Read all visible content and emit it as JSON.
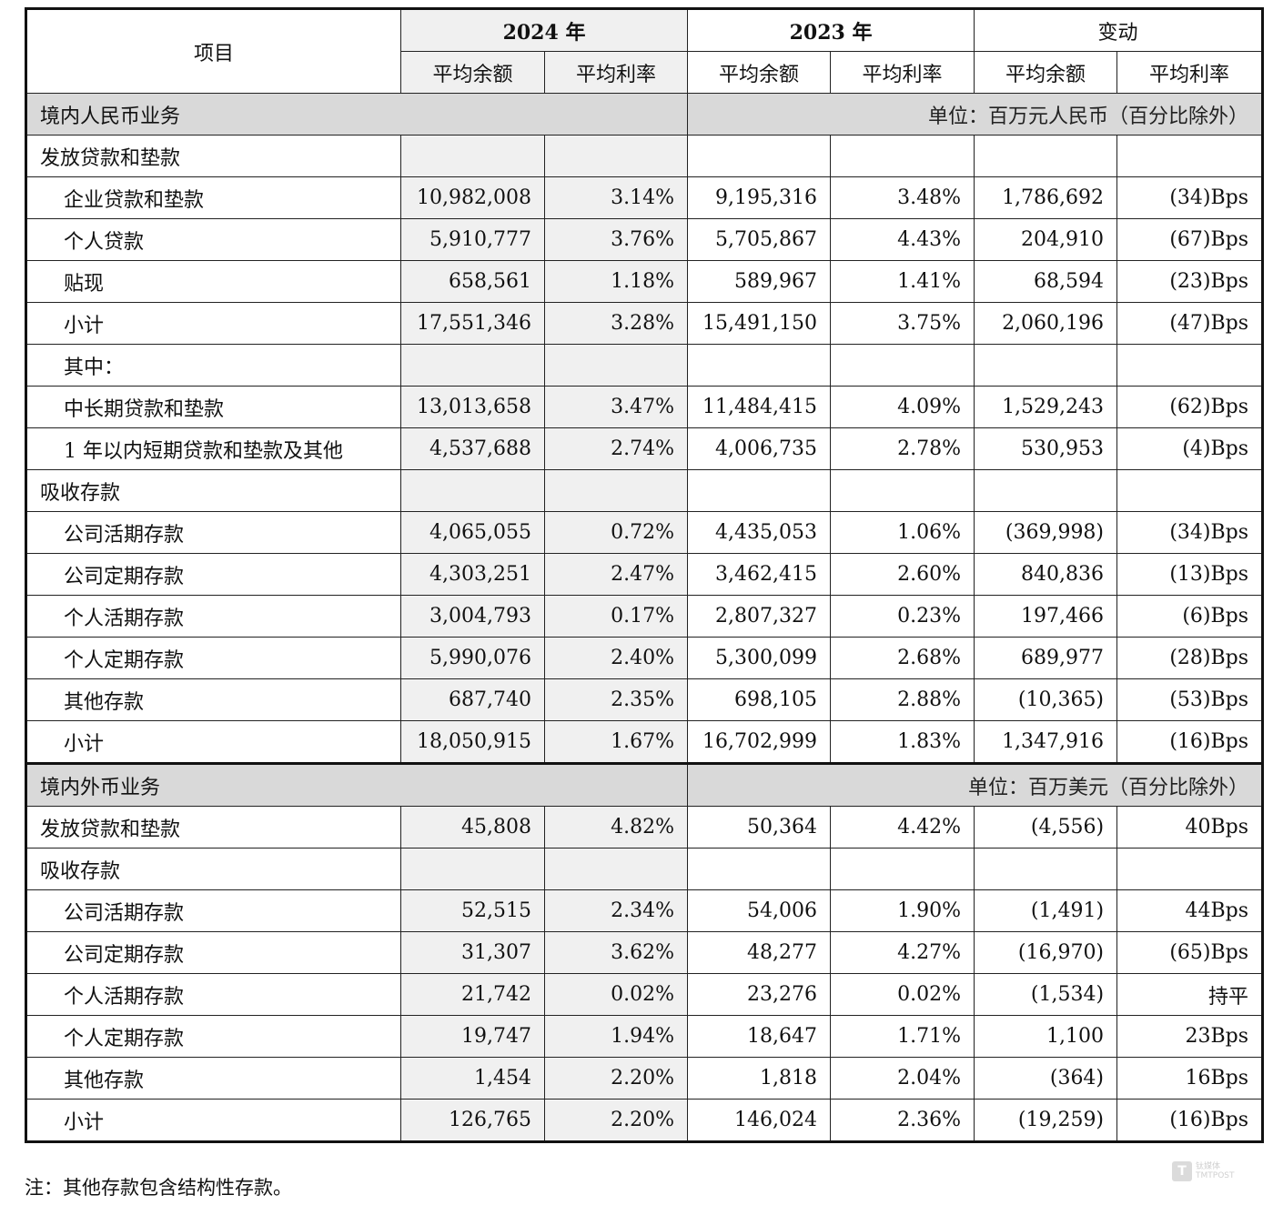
{
  "header": {
    "item": "项目",
    "year2024": "2024 年",
    "year2023": "2023 年",
    "change": "变动",
    "avg_balance": "平均余额",
    "avg_rate": "平均利率"
  },
  "section1": {
    "title": "境内人民币业务",
    "unit": "单位：百万元人民币（百分比除外）",
    "rows": [
      {
        "label": "发放贷款和垫款",
        "indent": false,
        "b24": "",
        "r24": "",
        "b23": "",
        "r23": "",
        "cb": "",
        "cr": ""
      },
      {
        "label": "企业贷款和垫款",
        "indent": true,
        "b24": "10,982,008",
        "r24": "3.14%",
        "b23": "9,195,316",
        "r23": "3.48%",
        "cb": "1,786,692",
        "cr": "(34)Bps"
      },
      {
        "label": "个人贷款",
        "indent": true,
        "b24": "5,910,777",
        "r24": "3.76%",
        "b23": "5,705,867",
        "r23": "4.43%",
        "cb": "204,910",
        "cr": "(67)Bps"
      },
      {
        "label": "贴现",
        "indent": true,
        "b24": "658,561",
        "r24": "1.18%",
        "b23": "589,967",
        "r23": "1.41%",
        "cb": "68,594",
        "cr": "(23)Bps"
      },
      {
        "label": "小计",
        "indent": true,
        "b24": "17,551,346",
        "r24": "3.28%",
        "b23": "15,491,150",
        "r23": "3.75%",
        "cb": "2,060,196",
        "cr": "(47)Bps"
      },
      {
        "label": "其中：",
        "indent": true,
        "b24": "",
        "r24": "",
        "b23": "",
        "r23": "",
        "cb": "",
        "cr": ""
      },
      {
        "label": "中长期贷款和垫款",
        "indent": true,
        "b24": "13,013,658",
        "r24": "3.47%",
        "b23": "11,484,415",
        "r23": "4.09%",
        "cb": "1,529,243",
        "cr": "(62)Bps"
      },
      {
        "label": "1 年以内短期贷款和垫款及其他",
        "indent": true,
        "b24": "4,537,688",
        "r24": "2.74%",
        "b23": "4,006,735",
        "r23": "2.78%",
        "cb": "530,953",
        "cr": "(4)Bps"
      },
      {
        "label": "吸收存款",
        "indent": false,
        "b24": "",
        "r24": "",
        "b23": "",
        "r23": "",
        "cb": "",
        "cr": ""
      },
      {
        "label": "公司活期存款",
        "indent": true,
        "b24": "4,065,055",
        "r24": "0.72%",
        "b23": "4,435,053",
        "r23": "1.06%",
        "cb": "(369,998)",
        "cr": "(34)Bps"
      },
      {
        "label": "公司定期存款",
        "indent": true,
        "b24": "4,303,251",
        "r24": "2.47%",
        "b23": "3,462,415",
        "r23": "2.60%",
        "cb": "840,836",
        "cr": "(13)Bps"
      },
      {
        "label": "个人活期存款",
        "indent": true,
        "b24": "3,004,793",
        "r24": "0.17%",
        "b23": "2,807,327",
        "r23": "0.23%",
        "cb": "197,466",
        "cr": "(6)Bps"
      },
      {
        "label": "个人定期存款",
        "indent": true,
        "b24": "5,990,076",
        "r24": "2.40%",
        "b23": "5,300,099",
        "r23": "2.68%",
        "cb": "689,977",
        "cr": "(28)Bps"
      },
      {
        "label": "其他存款",
        "indent": true,
        "b24": "687,740",
        "r24": "2.35%",
        "b23": "698,105",
        "r23": "2.88%",
        "cb": "(10,365)",
        "cr": "(53)Bps"
      },
      {
        "label": "小计",
        "indent": true,
        "b24": "18,050,915",
        "r24": "1.67%",
        "b23": "16,702,999",
        "r23": "1.83%",
        "cb": "1,347,916",
        "cr": "(16)Bps"
      }
    ]
  },
  "section2": {
    "title": "境内外币业务",
    "unit": "单位：百万美元（百分比除外）",
    "rows": [
      {
        "label": "发放贷款和垫款",
        "indent": false,
        "b24": "45,808",
        "r24": "4.82%",
        "b23": "50,364",
        "r23": "4.42%",
        "cb": "(4,556)",
        "cr": "40Bps"
      },
      {
        "label": "吸收存款",
        "indent": false,
        "b24": "",
        "r24": "",
        "b23": "",
        "r23": "",
        "cb": "",
        "cr": ""
      },
      {
        "label": "公司活期存款",
        "indent": true,
        "b24": "52,515",
        "r24": "2.34%",
        "b23": "54,006",
        "r23": "1.90%",
        "cb": "(1,491)",
        "cr": "44Bps"
      },
      {
        "label": "公司定期存款",
        "indent": true,
        "b24": "31,307",
        "r24": "3.62%",
        "b23": "48,277",
        "r23": "4.27%",
        "cb": "(16,970)",
        "cr": "(65)Bps"
      },
      {
        "label": "个人活期存款",
        "indent": true,
        "b24": "21,742",
        "r24": "0.02%",
        "b23": "23,276",
        "r23": "0.02%",
        "cb": "(1,534)",
        "cr": "持平"
      },
      {
        "label": "个人定期存款",
        "indent": true,
        "b24": "19,747",
        "r24": "1.94%",
        "b23": "18,647",
        "r23": "1.71%",
        "cb": "1,100",
        "cr": "23Bps"
      },
      {
        "label": "其他存款",
        "indent": true,
        "b24": "1,454",
        "r24": "2.20%",
        "b23": "1,818",
        "r23": "2.04%",
        "cb": "(364)",
        "cr": "16Bps"
      },
      {
        "label": "小计",
        "indent": true,
        "b24": "126,765",
        "r24": "2.20%",
        "b23": "146,024",
        "r23": "2.36%",
        "cb": "(19,259)",
        "cr": "(16)Bps"
      }
    ]
  },
  "footnote": "注：其他存款包含结构性存款。",
  "watermark": {
    "mark": "T",
    "text1": "钛媒体",
    "text2": "TMTPOST"
  }
}
